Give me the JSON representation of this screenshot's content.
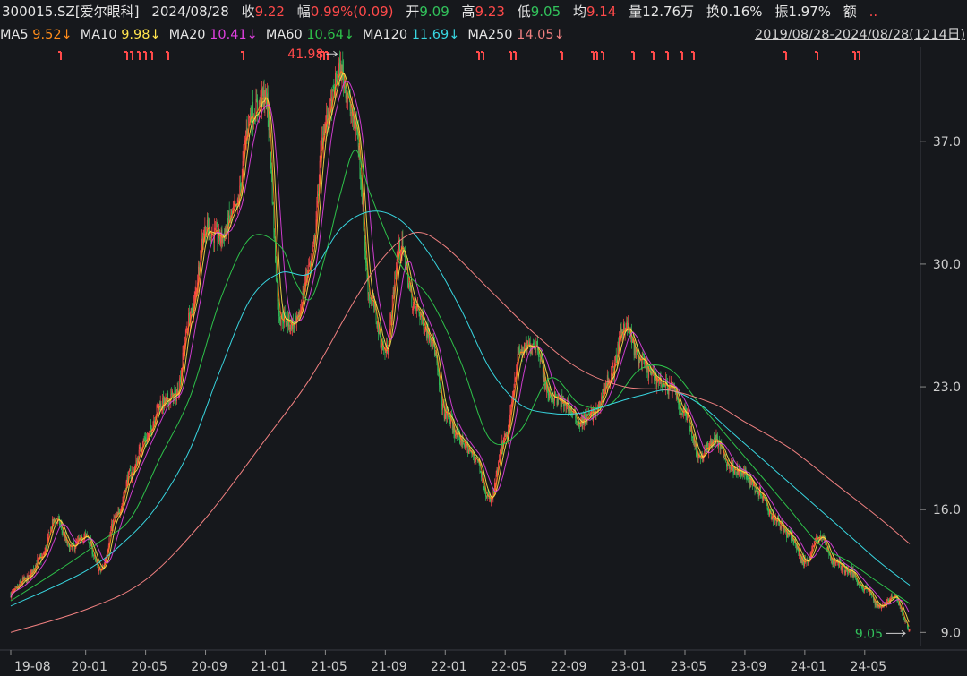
{
  "header": {
    "code": "300015.SZ[爱尔眼科]",
    "date": "2024/08/28",
    "close_label": "收",
    "close_value": "9.22",
    "change_label": "幅",
    "change_value": "0.99%(0.09)",
    "open_label": "开",
    "open_value": "9.09",
    "high_label": "高",
    "high_value": "9.23",
    "low_label": "低",
    "low_value": "9.05",
    "avg_label": "均",
    "avg_value": "9.14",
    "volume_label": "量",
    "volume_value": "12.76万",
    "turnover_label": "换",
    "turnover_value": "0.16%",
    "amplitude_label": "振",
    "amplitude_value": "1.97%",
    "amount_label": "额",
    "more": ".."
  },
  "ma_legend": [
    {
      "label": "MA5",
      "value": "9.52↓",
      "color": "#ff8c1a"
    },
    {
      "label": "MA10",
      "value": "9.98↓",
      "color": "#ffe34d"
    },
    {
      "label": "MA20",
      "value": "10.41↓",
      "color": "#e040e0"
    },
    {
      "label": "MA60",
      "value": "10.64↓",
      "color": "#2ec24a"
    },
    {
      "label": "MA120",
      "value": "11.69↓",
      "color": "#38d6e0"
    },
    {
      "label": "MA250",
      "value": "14.05↓",
      "color": "#f08080"
    }
  ],
  "range_text": "2019/08/28-2024/08/28(1214日)",
  "colors": {
    "background": "#16181c",
    "up": "#ff4a4a",
    "down": "#32c25b",
    "grid": "#2c2f35",
    "axis_text": "#cfcfcf"
  },
  "chart_data": {
    "type": "candlestick",
    "x_ticks": [
      "19-08",
      "20-01",
      "20-05",
      "20-09",
      "21-01",
      "21-05",
      "21-09",
      "22-01",
      "22-05",
      "22-09",
      "23-01",
      "23-05",
      "23-09",
      "24-01",
      "24-05"
    ],
    "y_ticks": [
      "9.0",
      "16.0",
      "23.0",
      "30.0",
      "37.0"
    ],
    "y_tick_values": [
      9,
      16,
      23,
      30,
      37
    ],
    "ylim": [
      8.2,
      42.4
    ],
    "x_range": [
      "2019-08",
      "2024-08"
    ],
    "grid": false,
    "max_annotation": {
      "text": "41.98",
      "value": 41.98,
      "date": "2021-05"
    },
    "min_annotation": {
      "text": "9.05",
      "value": 9.05,
      "date": "2024-08-28"
    },
    "price_path": [
      [
        "2019-08",
        11.2
      ],
      [
        "2019-09",
        12.0
      ],
      [
        "2019-10",
        13.2
      ],
      [
        "2019-11",
        15.5
      ],
      [
        "2019-12",
        13.8
      ],
      [
        "2020-01",
        14.5
      ],
      [
        "2020-02",
        12.5
      ],
      [
        "2020-03",
        15.5
      ],
      [
        "2020-04",
        18.0
      ],
      [
        "2020-05",
        20.0
      ],
      [
        "2020-06",
        22.0
      ],
      [
        "2020-07",
        22.5
      ],
      [
        "2020-08",
        27.0
      ],
      [
        "2020-09",
        32.0
      ],
      [
        "2020-10",
        31.5
      ],
      [
        "2020-11",
        33.0
      ],
      [
        "2020-12",
        38.5
      ],
      [
        "2021-01",
        39.5
      ],
      [
        "2021-02",
        27.0
      ],
      [
        "2021-03",
        26.5
      ],
      [
        "2021-04",
        30.0
      ],
      [
        "2021-05",
        38.0
      ],
      [
        "2021-06",
        41.0
      ],
      [
        "2021-07",
        38.0
      ],
      [
        "2021-08",
        28.0
      ],
      [
        "2021-09",
        25.0
      ],
      [
        "2021-10",
        31.0
      ],
      [
        "2021-11",
        27.5
      ],
      [
        "2021-12",
        26.0
      ],
      [
        "2022-01",
        21.5
      ],
      [
        "2022-02",
        20.0
      ],
      [
        "2022-03",
        19.0
      ],
      [
        "2022-04",
        16.5
      ],
      [
        "2022-05",
        20.0
      ],
      [
        "2022-06",
        25.0
      ],
      [
        "2022-07",
        25.5
      ],
      [
        "2022-08",
        22.5
      ],
      [
        "2022-09",
        22.0
      ],
      [
        "2022-10",
        21.0
      ],
      [
        "2022-11",
        21.5
      ],
      [
        "2022-12",
        23.5
      ],
      [
        "2023-01",
        26.5
      ],
      [
        "2023-02",
        24.5
      ],
      [
        "2023-03",
        23.5
      ],
      [
        "2023-04",
        23.0
      ],
      [
        "2023-05",
        21.5
      ],
      [
        "2023-06",
        19.0
      ],
      [
        "2023-07",
        20.0
      ],
      [
        "2023-08",
        18.5
      ],
      [
        "2023-09",
        18.0
      ],
      [
        "2023-10",
        17.0
      ],
      [
        "2023-11",
        15.5
      ],
      [
        "2023-12",
        14.5
      ],
      [
        "2024-01",
        13.0
      ],
      [
        "2024-02",
        14.5
      ],
      [
        "2024-03",
        13.0
      ],
      [
        "2024-04",
        12.5
      ],
      [
        "2024-05",
        11.5
      ],
      [
        "2024-06",
        10.5
      ],
      [
        "2024-07",
        11.0
      ],
      [
        "2024-08",
        9.22
      ]
    ],
    "moving_averages": [
      {
        "name": "MA60",
        "color": "#2ec24a",
        "values": [
          [
            "2019-08",
            10.8
          ],
          [
            "2019-12",
            13.0
          ],
          [
            "2020-02",
            14.2
          ],
          [
            "2020-04",
            15.5
          ],
          [
            "2020-06",
            19.0
          ],
          [
            "2020-08",
            22.5
          ],
          [
            "2020-10",
            28.0
          ],
          [
            "2020-12",
            31.5
          ],
          [
            "2021-02",
            31.0
          ],
          [
            "2021-03",
            29.0
          ],
          [
            "2021-04",
            28.0
          ],
          [
            "2021-05",
            30.5
          ],
          [
            "2021-06",
            34.0
          ],
          [
            "2021-07",
            36.5
          ],
          [
            "2021-08",
            34.0
          ],
          [
            "2021-10",
            30.0
          ],
          [
            "2021-12",
            28.0
          ],
          [
            "2022-02",
            24.5
          ],
          [
            "2022-04",
            20.0
          ],
          [
            "2022-06",
            20.5
          ],
          [
            "2022-08",
            23.5
          ],
          [
            "2022-10",
            22.0
          ],
          [
            "2022-12",
            22.0
          ],
          [
            "2023-02",
            24.0
          ],
          [
            "2023-04",
            24.0
          ],
          [
            "2023-06",
            22.0
          ],
          [
            "2023-08",
            20.0
          ],
          [
            "2023-10",
            18.0
          ],
          [
            "2023-12",
            16.0
          ],
          [
            "2024-02",
            14.0
          ],
          [
            "2024-04",
            13.0
          ],
          [
            "2024-06",
            11.8
          ],
          [
            "2024-08",
            10.64
          ]
        ]
      },
      {
        "name": "MA120",
        "color": "#38d6e0",
        "values": [
          [
            "2019-08",
            10.5
          ],
          [
            "2020-01",
            12.5
          ],
          [
            "2020-04",
            14.5
          ],
          [
            "2020-06",
            16.5
          ],
          [
            "2020-08",
            19.5
          ],
          [
            "2020-10",
            24.0
          ],
          [
            "2020-12",
            28.0
          ],
          [
            "2021-02",
            29.5
          ],
          [
            "2021-04",
            29.5
          ],
          [
            "2021-06",
            32.0
          ],
          [
            "2021-08",
            33.0
          ],
          [
            "2021-10",
            32.5
          ],
          [
            "2021-12",
            30.5
          ],
          [
            "2022-02",
            27.5
          ],
          [
            "2022-04",
            24.0
          ],
          [
            "2022-06",
            22.0
          ],
          [
            "2022-08",
            21.5
          ],
          [
            "2022-10",
            21.5
          ],
          [
            "2022-12",
            22.0
          ],
          [
            "2023-02",
            22.5
          ],
          [
            "2023-04",
            22.8
          ],
          [
            "2023-06",
            22.0
          ],
          [
            "2023-08",
            20.5
          ],
          [
            "2023-10",
            19.0
          ],
          [
            "2023-12",
            17.5
          ],
          [
            "2024-02",
            16.0
          ],
          [
            "2024-04",
            14.5
          ],
          [
            "2024-06",
            13.0
          ],
          [
            "2024-08",
            11.69
          ]
        ]
      },
      {
        "name": "MA250",
        "color": "#f08080",
        "values": [
          [
            "2019-08",
            9.0
          ],
          [
            "2020-01",
            10.3
          ],
          [
            "2020-05",
            12.0
          ],
          [
            "2020-09",
            15.5
          ],
          [
            "2021-01",
            20.0
          ],
          [
            "2021-04",
            23.5
          ],
          [
            "2021-07",
            28.0
          ],
          [
            "2021-09",
            30.5
          ],
          [
            "2021-11",
            31.8
          ],
          [
            "2022-01",
            31.0
          ],
          [
            "2022-04",
            28.5
          ],
          [
            "2022-07",
            26.0
          ],
          [
            "2022-10",
            24.0
          ],
          [
            "2023-01",
            23.0
          ],
          [
            "2023-04",
            22.8
          ],
          [
            "2023-07",
            22.0
          ],
          [
            "2023-09",
            21.0
          ],
          [
            "2023-12",
            19.5
          ],
          [
            "2024-03",
            17.5
          ],
          [
            "2024-06",
            15.5
          ],
          [
            "2024-08",
            14.05
          ]
        ]
      }
    ]
  }
}
